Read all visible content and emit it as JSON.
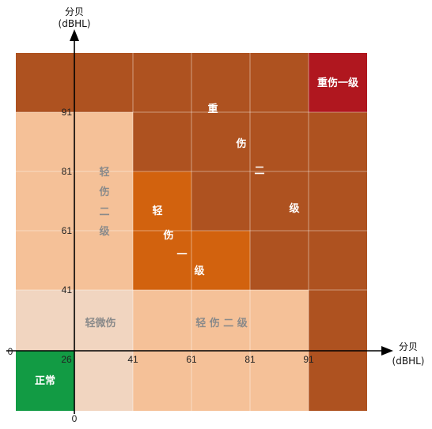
{
  "chart_data": {
    "type": "heatmap",
    "x_axis": {
      "title": "分贝",
      "unit": "(dBHL)",
      "origin_label": "0",
      "ticks": [
        "26",
        "41",
        "61",
        "81",
        "91"
      ]
    },
    "y_axis": {
      "title": "分贝",
      "unit": "(dBHL)",
      "origin_label": "0",
      "ticks": [
        "41",
        "61",
        "81",
        "91"
      ]
    },
    "zones": [
      {
        "key": "normal",
        "label": "正常",
        "color": "#129b44",
        "text_color": "#ffffff",
        "x_range": [
          "0",
          "26"
        ],
        "y_range": [
          "0",
          "26"
        ]
      },
      {
        "key": "slight",
        "label": "轻微伤",
        "color": "#f1d5c0",
        "text_color": "#8a8a8a",
        "x_range": [
          "26",
          "41"
        ],
        "y_range": [
          "26",
          "41"
        ]
      },
      {
        "key": "minor2",
        "label": "轻伤二级",
        "color": "#f5c198",
        "text_color": "#8a8a8a",
        "x_range": [
          "0",
          "91"
        ],
        "y_range": [
          "0",
          "91"
        ]
      },
      {
        "key": "minor1",
        "label": "轻伤一级",
        "color": "#d2620e",
        "text_color": "#ffffff",
        "x_range": [
          "41",
          "81"
        ],
        "y_range": [
          "41",
          "81"
        ]
      },
      {
        "key": "serious2",
        "label": "重伤二级",
        "color": "#ae5220",
        "text_color": "#ffffff",
        "x_range": [
          "41",
          ">91"
        ],
        "y_range": [
          "41",
          ">91"
        ]
      },
      {
        "key": "serious1",
        "label": "重伤一级",
        "color": "#b0171f",
        "text_color": "#ffffff",
        "x_range": [
          ">91",
          ">91"
        ],
        "y_range": [
          ">91",
          ">91"
        ]
      }
    ],
    "zone_text": {
      "normal": "正常",
      "slight": "轻微伤",
      "minor2_bottom": "轻 伤 二 级",
      "minor2_left": [
        "轻",
        "伤",
        "二",
        "级"
      ],
      "minor1": [
        "轻",
        "伤",
        "一",
        "级"
      ],
      "serious2": [
        "重",
        "伤",
        "二",
        "级"
      ],
      "serious1": "重伤一级"
    },
    "grid": true,
    "gridline_color": "#ffffff",
    "axis_color": "#000000"
  }
}
